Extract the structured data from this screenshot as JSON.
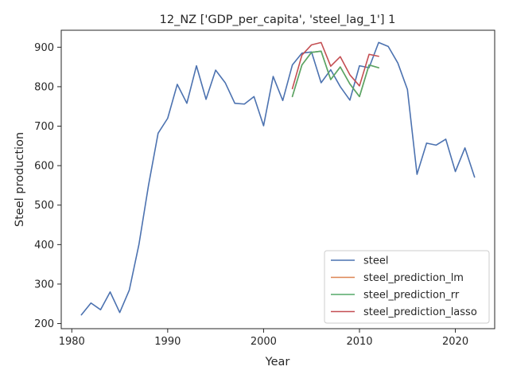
{
  "chart_data": {
    "type": "line",
    "title": "12_NZ ['GDP_per_capita', 'steel_lag_1'] 1",
    "xlabel": "Year",
    "ylabel": "Steel production",
    "xlim": [
      1978.9,
      2024.1
    ],
    "ylim": [
      187,
      943
    ],
    "xticks": [
      1980,
      1990,
      2000,
      2010,
      2020
    ],
    "yticks": [
      200,
      300,
      400,
      500,
      600,
      700,
      800,
      900
    ],
    "grid": false,
    "legend_position": "lower-right",
    "series": [
      {
        "name": "steel",
        "color": "#4c72b0",
        "x": [
          1981,
          1982,
          1983,
          1984,
          1985,
          1986,
          1987,
          1988,
          1989,
          1990,
          1991,
          1992,
          1993,
          1994,
          1995,
          1996,
          1997,
          1998,
          1999,
          2000,
          2001,
          2002,
          2003,
          2004,
          2005,
          2006,
          2007,
          2008,
          2009,
          2010,
          2011,
          2012,
          2013,
          2014,
          2015,
          2016,
          2017,
          2018,
          2019,
          2020,
          2021,
          2022
        ],
        "values": [
          222,
          252,
          235,
          280,
          228,
          285,
          400,
          550,
          682,
          720,
          806,
          758,
          853,
          768,
          842,
          810,
          758,
          756,
          775,
          701,
          826,
          765,
          855,
          885,
          888,
          810,
          843,
          800,
          766,
          853,
          848,
          912,
          902,
          860,
          793,
          578,
          657,
          652,
          667,
          585,
          645,
          571
        ]
      },
      {
        "name": "steel_prediction_lm",
        "color": "#dd8452",
        "x": [
          2003,
          2004,
          2005,
          2006,
          2007,
          2008,
          2009,
          2010,
          2011,
          2012
        ],
        "values": [
          775,
          855,
          887,
          890,
          818,
          850,
          807,
          775,
          855,
          848
        ]
      },
      {
        "name": "steel_prediction_rr",
        "color": "#55a868",
        "x": [
          2003,
          2004,
          2005,
          2006,
          2007,
          2008,
          2009,
          2010,
          2011,
          2012
        ],
        "values": [
          775,
          855,
          887,
          890,
          818,
          850,
          807,
          775,
          855,
          848
        ]
      },
      {
        "name": "steel_prediction_lasso",
        "color": "#c44e52",
        "x": [
          2003,
          2004,
          2005,
          2006,
          2007,
          2008,
          2009,
          2010,
          2011,
          2012
        ],
        "values": [
          795,
          880,
          906,
          912,
          852,
          876,
          830,
          802,
          882,
          877
        ]
      }
    ]
  }
}
